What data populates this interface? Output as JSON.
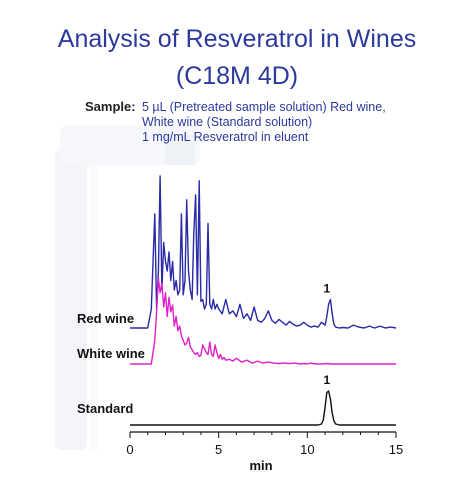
{
  "title_line1": "Analysis of Resveratrol in Wines",
  "title_line2": "(C18M 4D)",
  "sample": {
    "label": "Sample:",
    "line1": "5 µL (Pretreated sample solution) Red wine,",
    "line2": "White wine (Standard solution)",
    "line3": "1 mg/mL Resveratrol in eluent"
  },
  "colors": {
    "title": "#2b3a9c",
    "red_wine": "#2a2aa8",
    "white_wine": "#e020c8",
    "standard": "#111111",
    "axis": "#111111"
  },
  "chart_data": {
    "type": "line",
    "xlabel": "min",
    "xlim": [
      0,
      15
    ],
    "xticks": [
      0,
      5,
      10,
      15
    ],
    "xtick_minor_step": 1,
    "series": [
      {
        "name": "Red wine",
        "color": "#2a2aa8",
        "baseline": 0.0,
        "x": [
          0.0,
          1.0,
          1.2,
          1.4,
          1.5,
          1.6,
          1.7,
          1.8,
          1.9,
          2.0,
          2.1,
          2.2,
          2.3,
          2.4,
          2.5,
          2.6,
          2.7,
          2.8,
          2.9,
          3.0,
          3.1,
          3.2,
          3.3,
          3.4,
          3.5,
          3.6,
          3.7,
          3.8,
          3.9,
          4.0,
          4.1,
          4.2,
          4.3,
          4.4,
          4.5,
          4.6,
          4.7,
          4.8,
          4.9,
          5.0,
          5.2,
          5.4,
          5.6,
          5.8,
          6.0,
          6.2,
          6.4,
          6.6,
          6.8,
          7.0,
          7.2,
          7.4,
          7.6,
          7.8,
          8.0,
          8.2,
          8.4,
          8.6,
          8.8,
          9.0,
          9.2,
          9.4,
          9.6,
          9.8,
          10.0,
          10.2,
          10.4,
          10.6,
          10.8,
          11.0,
          11.1,
          11.2,
          11.3,
          11.4,
          11.5,
          11.6,
          11.8,
          12.0,
          12.3,
          12.6,
          12.9,
          13.2,
          13.5,
          13.8,
          14.1,
          14.4,
          14.7,
          15.0
        ],
        "y": [
          0.0,
          0.0,
          2.0,
          12.0,
          2.0,
          6.0,
          16.0,
          4.0,
          9.0,
          7.0,
          6.0,
          8.0,
          5.0,
          7.0,
          4.0,
          5.0,
          3.5,
          4.0,
          12.0,
          3.5,
          5.0,
          13.5,
          6.0,
          4.0,
          3.0,
          10.0,
          14.0,
          3.5,
          15.5,
          2.8,
          3.0,
          2.0,
          2.5,
          11.0,
          2.5,
          2.0,
          3.0,
          2.0,
          2.5,
          2.0,
          1.5,
          3.0,
          1.5,
          1.8,
          1.2,
          2.5,
          1.0,
          1.5,
          0.8,
          2.2,
          0.8,
          0.6,
          1.0,
          1.8,
          0.8,
          0.5,
          0.9,
          0.6,
          0.3,
          0.7,
          0.4,
          0.2,
          0.3,
          0.6,
          0.3,
          0.1,
          0.2,
          0.1,
          0.6,
          0.3,
          1.2,
          2.5,
          3.0,
          1.5,
          0.4,
          0.1,
          0.0,
          0.05,
          0.0,
          0.3,
          0.1,
          0.0,
          0.2,
          0.0,
          0.2,
          0.0,
          0.1,
          0.0
        ]
      },
      {
        "name": "White wine",
        "color": "#e020c8",
        "baseline": 0.0,
        "x": [
          0.0,
          1.2,
          1.4,
          1.5,
          1.6,
          1.7,
          1.8,
          1.9,
          2.0,
          2.1,
          2.2,
          2.3,
          2.4,
          2.5,
          2.6,
          2.7,
          2.8,
          2.9,
          3.0,
          3.1,
          3.2,
          3.3,
          3.4,
          3.5,
          3.6,
          3.7,
          3.8,
          3.9,
          4.0,
          4.1,
          4.2,
          4.3,
          4.4,
          4.5,
          4.6,
          4.7,
          4.8,
          4.9,
          5.0,
          5.1,
          5.2,
          5.3,
          5.4,
          5.6,
          5.8,
          6.0,
          6.3,
          6.6,
          6.9,
          7.2,
          7.5,
          7.8,
          8.1,
          8.4,
          8.7,
          9.0,
          9.3,
          9.6,
          9.8,
          10.0,
          10.2,
          10.5,
          10.8,
          11.1,
          11.4,
          11.7,
          12.0,
          12.5,
          13.0,
          13.5,
          14.0,
          14.5,
          15.0
        ],
        "y": [
          0.0,
          0.0,
          2.5,
          5.5,
          9.0,
          7.5,
          8.5,
          6.0,
          7.5,
          5.0,
          7.0,
          5.5,
          6.2,
          4.0,
          5.0,
          3.5,
          4.0,
          3.0,
          2.5,
          2.0,
          2.2,
          2.8,
          1.8,
          1.5,
          1.2,
          1.0,
          1.2,
          0.8,
          0.9,
          2.0,
          1.6,
          1.2,
          1.0,
          2.3,
          1.0,
          0.8,
          2.0,
          1.2,
          0.6,
          1.0,
          0.5,
          0.7,
          0.4,
          0.5,
          0.3,
          0.6,
          0.2,
          0.4,
          0.1,
          0.3,
          0.1,
          0.2,
          0.1,
          0.05,
          0.1,
          0.05,
          0.1,
          0.0,
          0.05,
          0.0,
          0.1,
          0.0,
          0.0,
          0.05,
          0.0,
          0.0,
          0.0,
          0.0,
          0.0,
          0.0,
          0.0,
          0.0,
          0.0
        ]
      },
      {
        "name": "Standard",
        "color": "#111111",
        "baseline": 0.0,
        "x": [
          0.0,
          10.6,
          10.8,
          10.9,
          11.0,
          11.1,
          11.2,
          11.3,
          11.4,
          11.5,
          11.6,
          11.8,
          12.0,
          15.0
        ],
        "y": [
          0.0,
          0.0,
          0.2,
          1.0,
          3.6,
          6.5,
          6.8,
          5.2,
          2.4,
          0.8,
          0.2,
          0.0,
          0.0,
          0.0
        ]
      }
    ],
    "annotations": [
      {
        "series": "Red wine",
        "x": 11.1,
        "text": "1"
      },
      {
        "series": "Standard",
        "x": 11.1,
        "text": "1"
      }
    ]
  }
}
